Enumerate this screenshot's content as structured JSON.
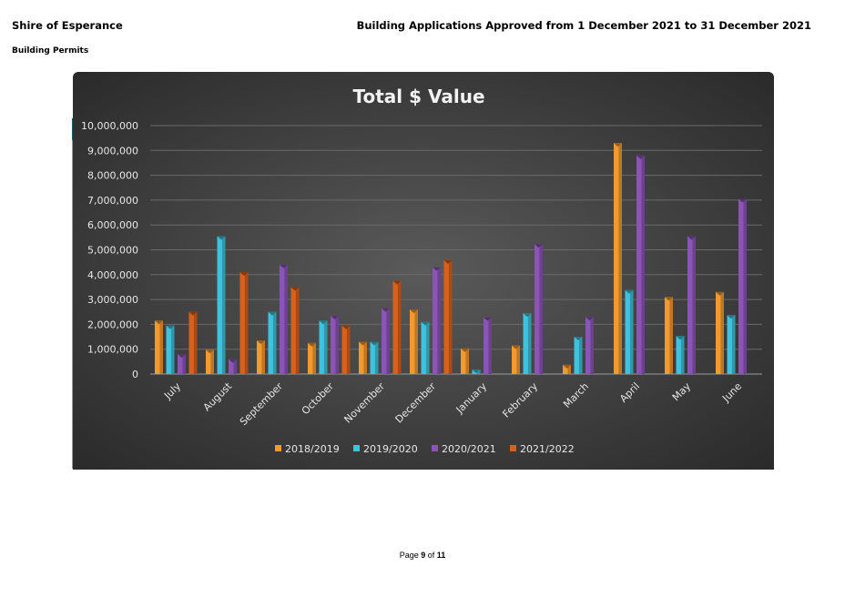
{
  "header": {
    "organization": "Shire of Esperance",
    "report_title": "Building Applications Approved from 1 December 2021 to 31 December 2021",
    "section": "Building Permits"
  },
  "footer": {
    "page_label": "Page",
    "page_current": "9",
    "of_label": "of",
    "page_total": "11"
  },
  "colors": {
    "s2018": "#f39a2e",
    "s2019": "#3ec3de",
    "s2020": "#8b55b8",
    "s2021": "#d9601b"
  },
  "chart_data": {
    "type": "bar",
    "title": "Total $ Value",
    "xlabel": "",
    "ylabel": "",
    "ylim": [
      0,
      10000000
    ],
    "yticks": [
      0,
      1000000,
      2000000,
      3000000,
      4000000,
      5000000,
      6000000,
      7000000,
      8000000,
      9000000,
      10000000
    ],
    "ytick_labels": [
      "0",
      "1,000,000",
      "2,000,000",
      "3,000,000",
      "4,000,000",
      "5,000,000",
      "6,000,000",
      "7,000,000",
      "8,000,000",
      "9,000,000",
      "10,000,000"
    ],
    "grid": true,
    "legend_position": "bottom",
    "categories": [
      "July",
      "August",
      "September",
      "October",
      "November",
      "December",
      "January",
      "February",
      "March",
      "April",
      "May",
      "June"
    ],
    "series": [
      {
        "name": "2018/2019",
        "color_key": "s2018",
        "values": [
          2150000,
          980000,
          1350000,
          1250000,
          1300000,
          2600000,
          1030000,
          1150000,
          370000,
          9300000,
          3100000,
          3300000
        ]
      },
      {
        "name": "2019/2020",
        "color_key": "s2019",
        "values": [
          1950000,
          5550000,
          2500000,
          2150000,
          1300000,
          2100000,
          180000,
          2450000,
          1500000,
          3380000,
          1530000,
          2370000
        ]
      },
      {
        "name": "2020/2021",
        "color_key": "s2020",
        "values": [
          800000,
          600000,
          4400000,
          2350000,
          2650000,
          4300000,
          2280000,
          5230000,
          2300000,
          8800000,
          5550000,
          7050000
        ]
      },
      {
        "name": "2021/2022",
        "color_key": "s2021",
        "values": [
          2500000,
          4100000,
          3500000,
          1950000,
          3750000,
          4580000,
          null,
          null,
          null,
          null,
          null,
          null
        ]
      }
    ]
  }
}
